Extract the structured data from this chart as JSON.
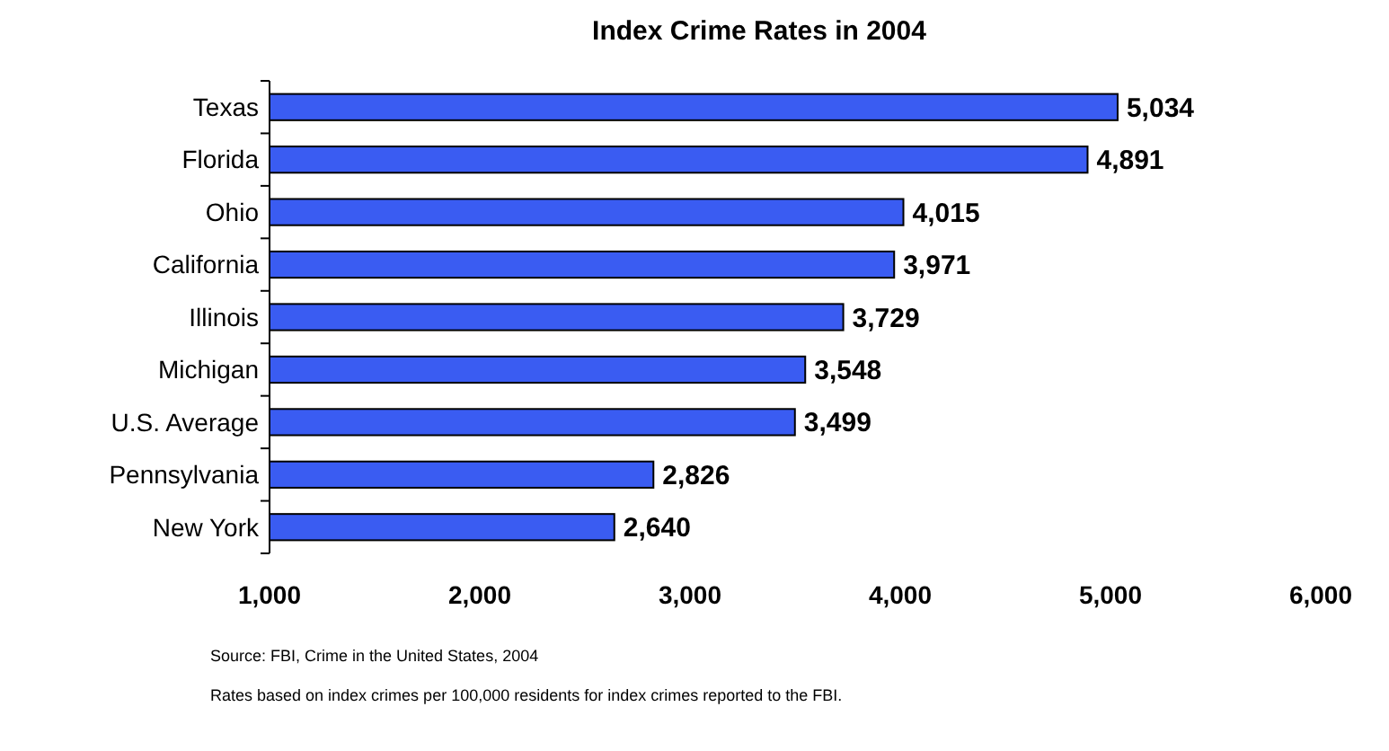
{
  "chart_data": {
    "type": "bar",
    "orientation": "horizontal",
    "title": "Index Crime Rates in 2004",
    "categories": [
      "Texas",
      "Florida",
      "Ohio",
      "California",
      "Illinois",
      "Michigan",
      "U.S. Average",
      "Pennsylvania",
      "New York"
    ],
    "values": [
      5034,
      4891,
      4015,
      3971,
      3729,
      3548,
      3499,
      2826,
      2640
    ],
    "value_labels": [
      "5,034",
      "4,891",
      "4,015",
      "3,971",
      "3,729",
      "3,548",
      "3,499",
      "2,826",
      "2,640"
    ],
    "color": "#3a5cf2",
    "grid": false,
    "legend": false,
    "xlim": [
      1000,
      6000
    ],
    "xticks": [
      {
        "value": 1000,
        "label": "1,000"
      },
      {
        "value": 2000,
        "label": "2,000"
      },
      {
        "value": 3000,
        "label": "3,000"
      },
      {
        "value": 4000,
        "label": "4,000"
      },
      {
        "value": 5000,
        "label": "5,000"
      },
      {
        "value": 6000,
        "label": "6,000"
      }
    ],
    "annotations": [
      "Source: FBI, Crime in the United States, 2004",
      "Rates based on index crimes per 100,000 residents for index crimes reported to the FBI."
    ]
  }
}
